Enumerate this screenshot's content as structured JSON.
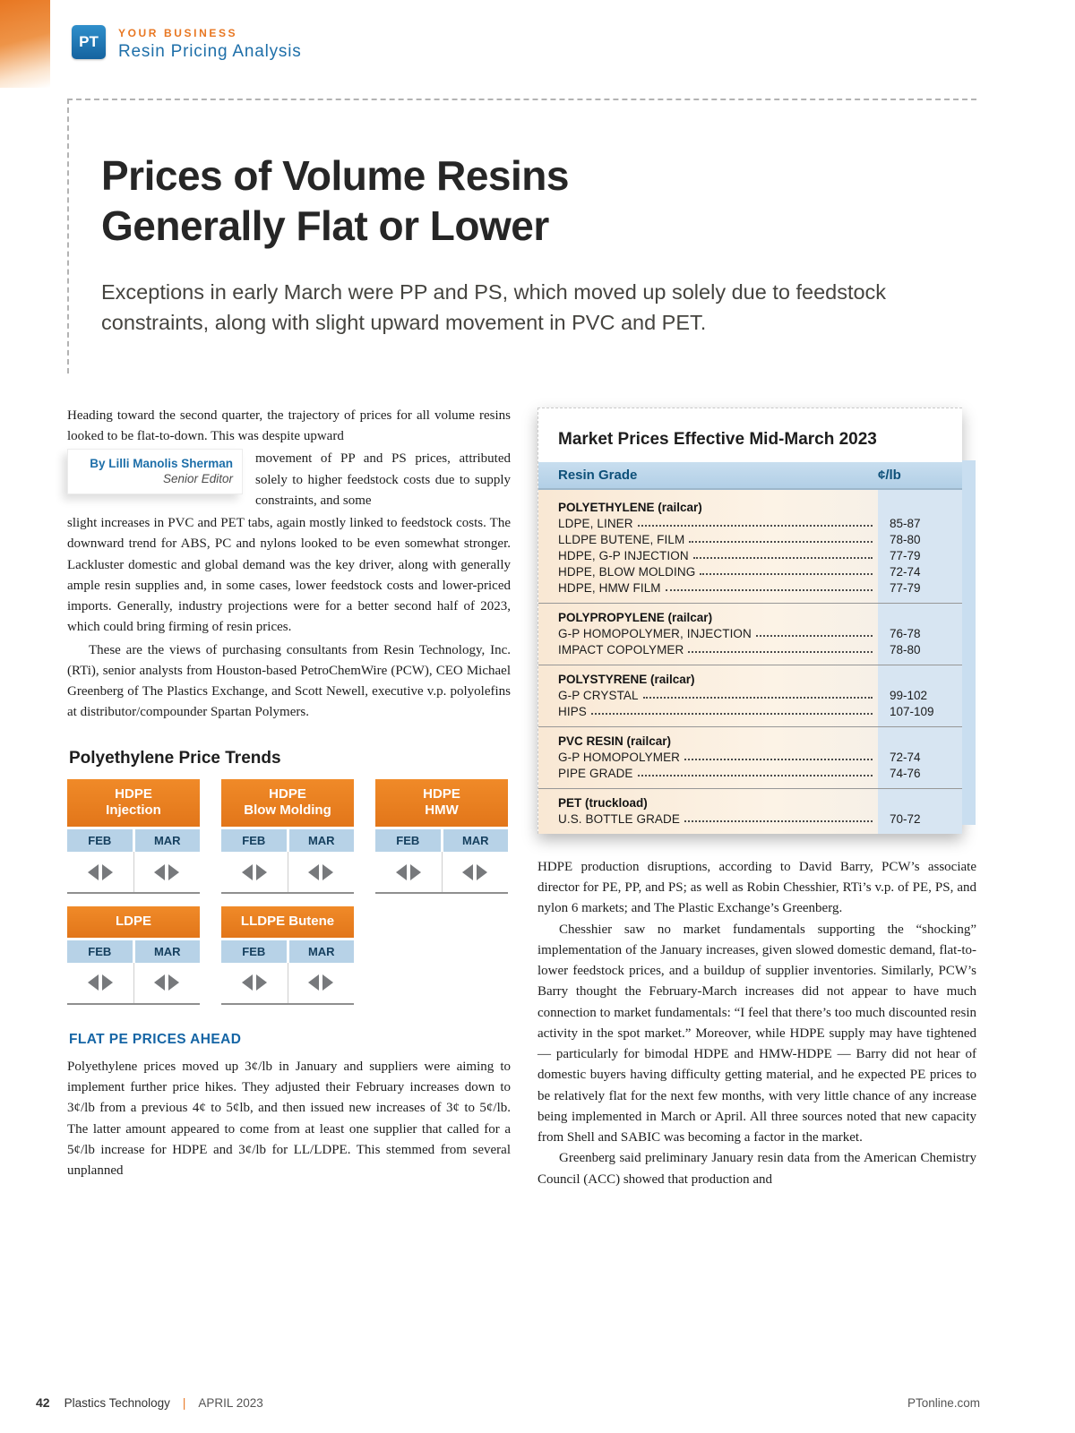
{
  "theme": {
    "orange": "#E87722",
    "blue": "#1E6FA9",
    "table_header_bg": "#BCD6EA",
    "card_header_bg": "#E8821F",
    "value_band_bg": "#D7E5F2"
  },
  "masthead": {
    "logo": "PT",
    "kicker": "YOUR BUSINESS",
    "section_title": "Resin Pricing Analysis"
  },
  "article": {
    "title_line1": "Prices of Volume Resins",
    "title_line2": "Generally Flat or Lower",
    "deck": "Exceptions in early March were PP and PS, which moved up solely due to feedstock constraints, along with slight upward movement in PVC and PET.",
    "byline": "By Lilli Manolis Sherman",
    "byline_role": "Senior Editor",
    "left_col": {
      "para1_a": "Heading toward the second quarter, the trajectory of prices for all volume resins looked to be flat-to-down. This was despite upward",
      "para1_b": "movement of PP and PS prices, attributed solely to higher feedstock costs due to supply constraints, and some",
      "para1_c": "slight increases in PVC and PET tabs, again mostly linked to feedstock costs. The downward trend for ABS, PC and nylons looked to be even somewhat stronger. Lackluster domestic and global demand was the key driver, along with generally ample resin supplies and, in some cases, lower feedstock costs and lower-priced imports. Generally, industry projections were for a better second half of 2023, which could bring firming of resin prices.",
      "para2": "These are the views of purchasing consultants from Resin Technology, Inc. (RTi), senior analysts from Houston-based PetroChemWire (PCW), CEO Michael Greenberg of The Plastics Exchange, and Scott Newell, executive v.p. polyolefins at distributor/compounder Spartan Polymers.",
      "trends_heading": "Polyethylene Price Trends",
      "flat_heading": "FLAT PE PRICES AHEAD",
      "para3": "Polyethylene prices moved up 3¢/lb in January and suppliers were aiming to implement further price hikes. They adjusted their February increases down to 3¢/lb from a previous 4¢ to 5¢lb, and then issued new increases of 3¢ to 5¢/lb. The latter amount appeared to come from at least one supplier that called for a 5¢/lb increase for HDPE and 3¢/lb for LL/LDPE. This stemmed from several unplanned"
    },
    "right_col": {
      "para1": "HDPE production disruptions, according to David Barry, PCW’s associate director for PE, PP, and PS; as well as Robin Chesshier, RTi’s v.p. of PE, PS, and nylon 6 markets; and The Plastic Exchange’s Greenberg.",
      "para2": "Chesshier saw no market fundamentals supporting the “shocking” implementation of the January increases, given slowed domestic demand, flat-to-lower feedstock prices, and a buildup of supplier inventories. Similarly, PCW’s Barry thought the February-March increases did not appear to have much connection to market fundamentals: “I feel that there’s too much discounted resin activity in the spot market.” Moreover, while HDPE supply may have tightened — particularly for bimodal HDPE and HMW-HDPE — Barry did not hear of domestic buyers having difficulty getting material, and he expected PE prices to be relatively flat for the next few months, with very little chance of any increase being implemented in March or April. All three sources noted that new capacity from Shell and SABIC was becoming a factor in the market.",
      "para3": "Greenberg said preliminary January resin data from the American Chemistry Council (ACC) showed that production and"
    }
  },
  "market_table": {
    "title": "Market Prices Effective Mid-March 2023",
    "col1": "Resin Grade",
    "col2": "¢/lb",
    "sections": [
      {
        "header": "POLYETHYLENE (railcar)",
        "rows": [
          {
            "label": "LDPE, LINER",
            "value": "85-87"
          },
          {
            "label": "LLDPE BUTENE, FILM",
            "value": "78-80"
          },
          {
            "label": "HDPE, G-P INJECTION",
            "value": "77-79"
          },
          {
            "label": "HDPE, BLOW MOLDING",
            "value": "72-74"
          },
          {
            "label": "HDPE, HMW FILM",
            "value": "77-79"
          }
        ]
      },
      {
        "header": "POLYPROPYLENE (railcar)",
        "rows": [
          {
            "label": "G-P HOMOPOLYMER, INJECTION",
            "value": "76-78"
          },
          {
            "label": "IMPACT COPOLYMER",
            "value": "78-80"
          }
        ]
      },
      {
        "header": "POLYSTYRENE (railcar)",
        "rows": [
          {
            "label": "G-P CRYSTAL",
            "value": "99-102"
          },
          {
            "label": "HIPS",
            "value": "107-109"
          }
        ]
      },
      {
        "header": "PVC RESIN (railcar)",
        "rows": [
          {
            "label": "G-P HOMOPOLYMER",
            "value": "72-74"
          },
          {
            "label": "PIPE GRADE",
            "value": "74-76"
          }
        ]
      },
      {
        "header": "PET (truckload)",
        "rows": [
          {
            "label": "U.S. BOTTLE GRADE",
            "value": "70-72"
          }
        ]
      }
    ]
  },
  "trend_cards": {
    "months": [
      "FEB",
      "MAR"
    ],
    "cards": [
      {
        "line1": "HDPE",
        "line2": "Injection",
        "feb_trend": "flat",
        "mar_trend": "flat"
      },
      {
        "line1": "HDPE",
        "line2": "Blow Molding",
        "feb_trend": "flat",
        "mar_trend": "flat"
      },
      {
        "line1": "HDPE",
        "line2": "HMW",
        "feb_trend": "flat",
        "mar_trend": "flat"
      },
      {
        "line1": "LDPE",
        "line2": "",
        "feb_trend": "flat",
        "mar_trend": "flat"
      },
      {
        "line1": "LLDPE Butene",
        "line2": "",
        "feb_trend": "flat",
        "mar_trend": "flat"
      }
    ]
  },
  "footer": {
    "page_number": "42",
    "magazine": "Plastics Technology",
    "separator": "|",
    "issue": "APRIL 2023",
    "site": "PTonline.com"
  }
}
